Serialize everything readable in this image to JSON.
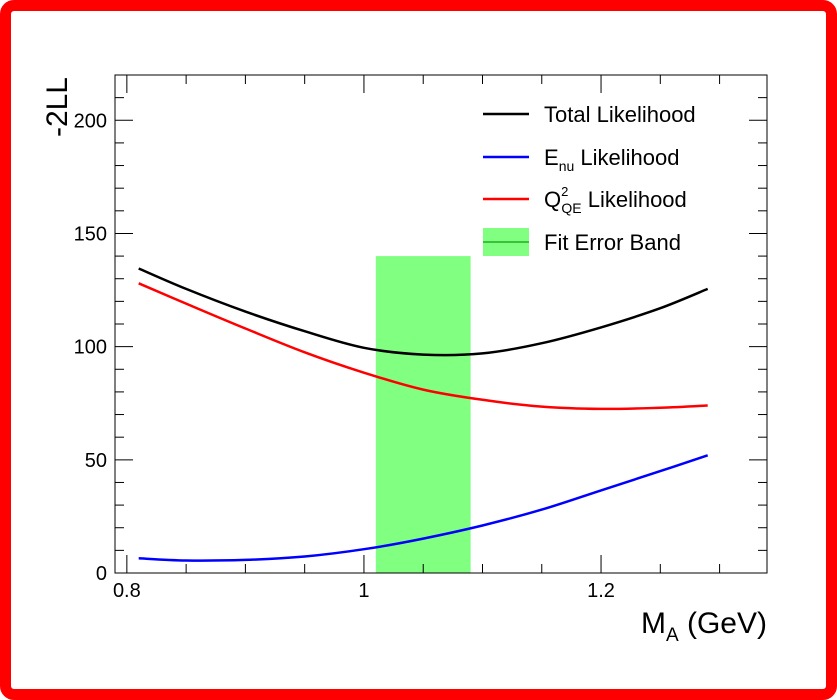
{
  "chart_data": {
    "type": "line",
    "xlabel_main": "M",
    "xlabel_sub": "A",
    "xlabel_unit": " (GeV)",
    "ylabel": "-2LL",
    "xlim": [
      0.79,
      1.34
    ],
    "ylim": [
      0,
      220
    ],
    "x_ticks": [
      {
        "value": 0.8,
        "label": "0.8"
      },
      {
        "value": 1.0,
        "label": "1"
      },
      {
        "value": 1.2,
        "label": "1.2"
      }
    ],
    "y_ticks": [
      {
        "value": 0,
        "label": "0"
      },
      {
        "value": 50,
        "label": "50"
      },
      {
        "value": 100,
        "label": "100"
      },
      {
        "value": 150,
        "label": "150"
      },
      {
        "value": 200,
        "label": "200"
      }
    ],
    "band": {
      "x_min": 1.01,
      "x_max": 1.09,
      "y_min": 0,
      "y_max": 140,
      "color": "#80ff80"
    },
    "series": [
      {
        "name": "Total Likelihood",
        "color": "#000000",
        "x": [
          0.81,
          0.85,
          0.9,
          0.95,
          1.0,
          1.05,
          1.1,
          1.15,
          1.2,
          1.25,
          1.29
        ],
        "y": [
          134.5,
          125.5,
          115.5,
          106.8,
          99.5,
          96.5,
          97.0,
          101.5,
          108.5,
          117.0,
          125.5
        ]
      },
      {
        "name": "Enu Likelihood",
        "color": "#0000ff",
        "x": [
          0.81,
          0.85,
          0.9,
          0.95,
          1.0,
          1.05,
          1.1,
          1.15,
          1.2,
          1.25,
          1.29
        ],
        "y": [
          6.5,
          5.5,
          5.8,
          7.3,
          10.5,
          15.2,
          21.0,
          28.0,
          36.5,
          45.0,
          52.0
        ]
      },
      {
        "name": "QQE2 Likelihood",
        "color": "#ff0000",
        "x": [
          0.81,
          0.85,
          0.9,
          0.95,
          1.0,
          1.05,
          1.1,
          1.15,
          1.2,
          1.25,
          1.29
        ],
        "y": [
          128.0,
          119.0,
          108.0,
          97.5,
          88.5,
          81.0,
          76.5,
          73.5,
          72.5,
          73.0,
          74.0
        ]
      }
    ],
    "legend": {
      "position": "top-right",
      "entries": [
        {
          "key": "total",
          "label_main": "Total Likelihood",
          "label_sub": "",
          "label_sup": "",
          "label_rest": "",
          "color": "#000000",
          "kind": "line"
        },
        {
          "key": "enu",
          "label_main": "E",
          "label_sub": "nu",
          "label_sup": "",
          "label_rest": " Likelihood",
          "color": "#0000ff",
          "kind": "line"
        },
        {
          "key": "qqe",
          "label_main": "Q",
          "label_sub": "QE",
          "label_sup": "2",
          "label_rest": " Likelihood",
          "color": "#ff0000",
          "kind": "line"
        },
        {
          "key": "band",
          "label_main": "Fit Error Band",
          "label_sub": "",
          "label_sup": "",
          "label_rest": "",
          "color": "#80ff80",
          "kind": "band"
        }
      ]
    }
  }
}
